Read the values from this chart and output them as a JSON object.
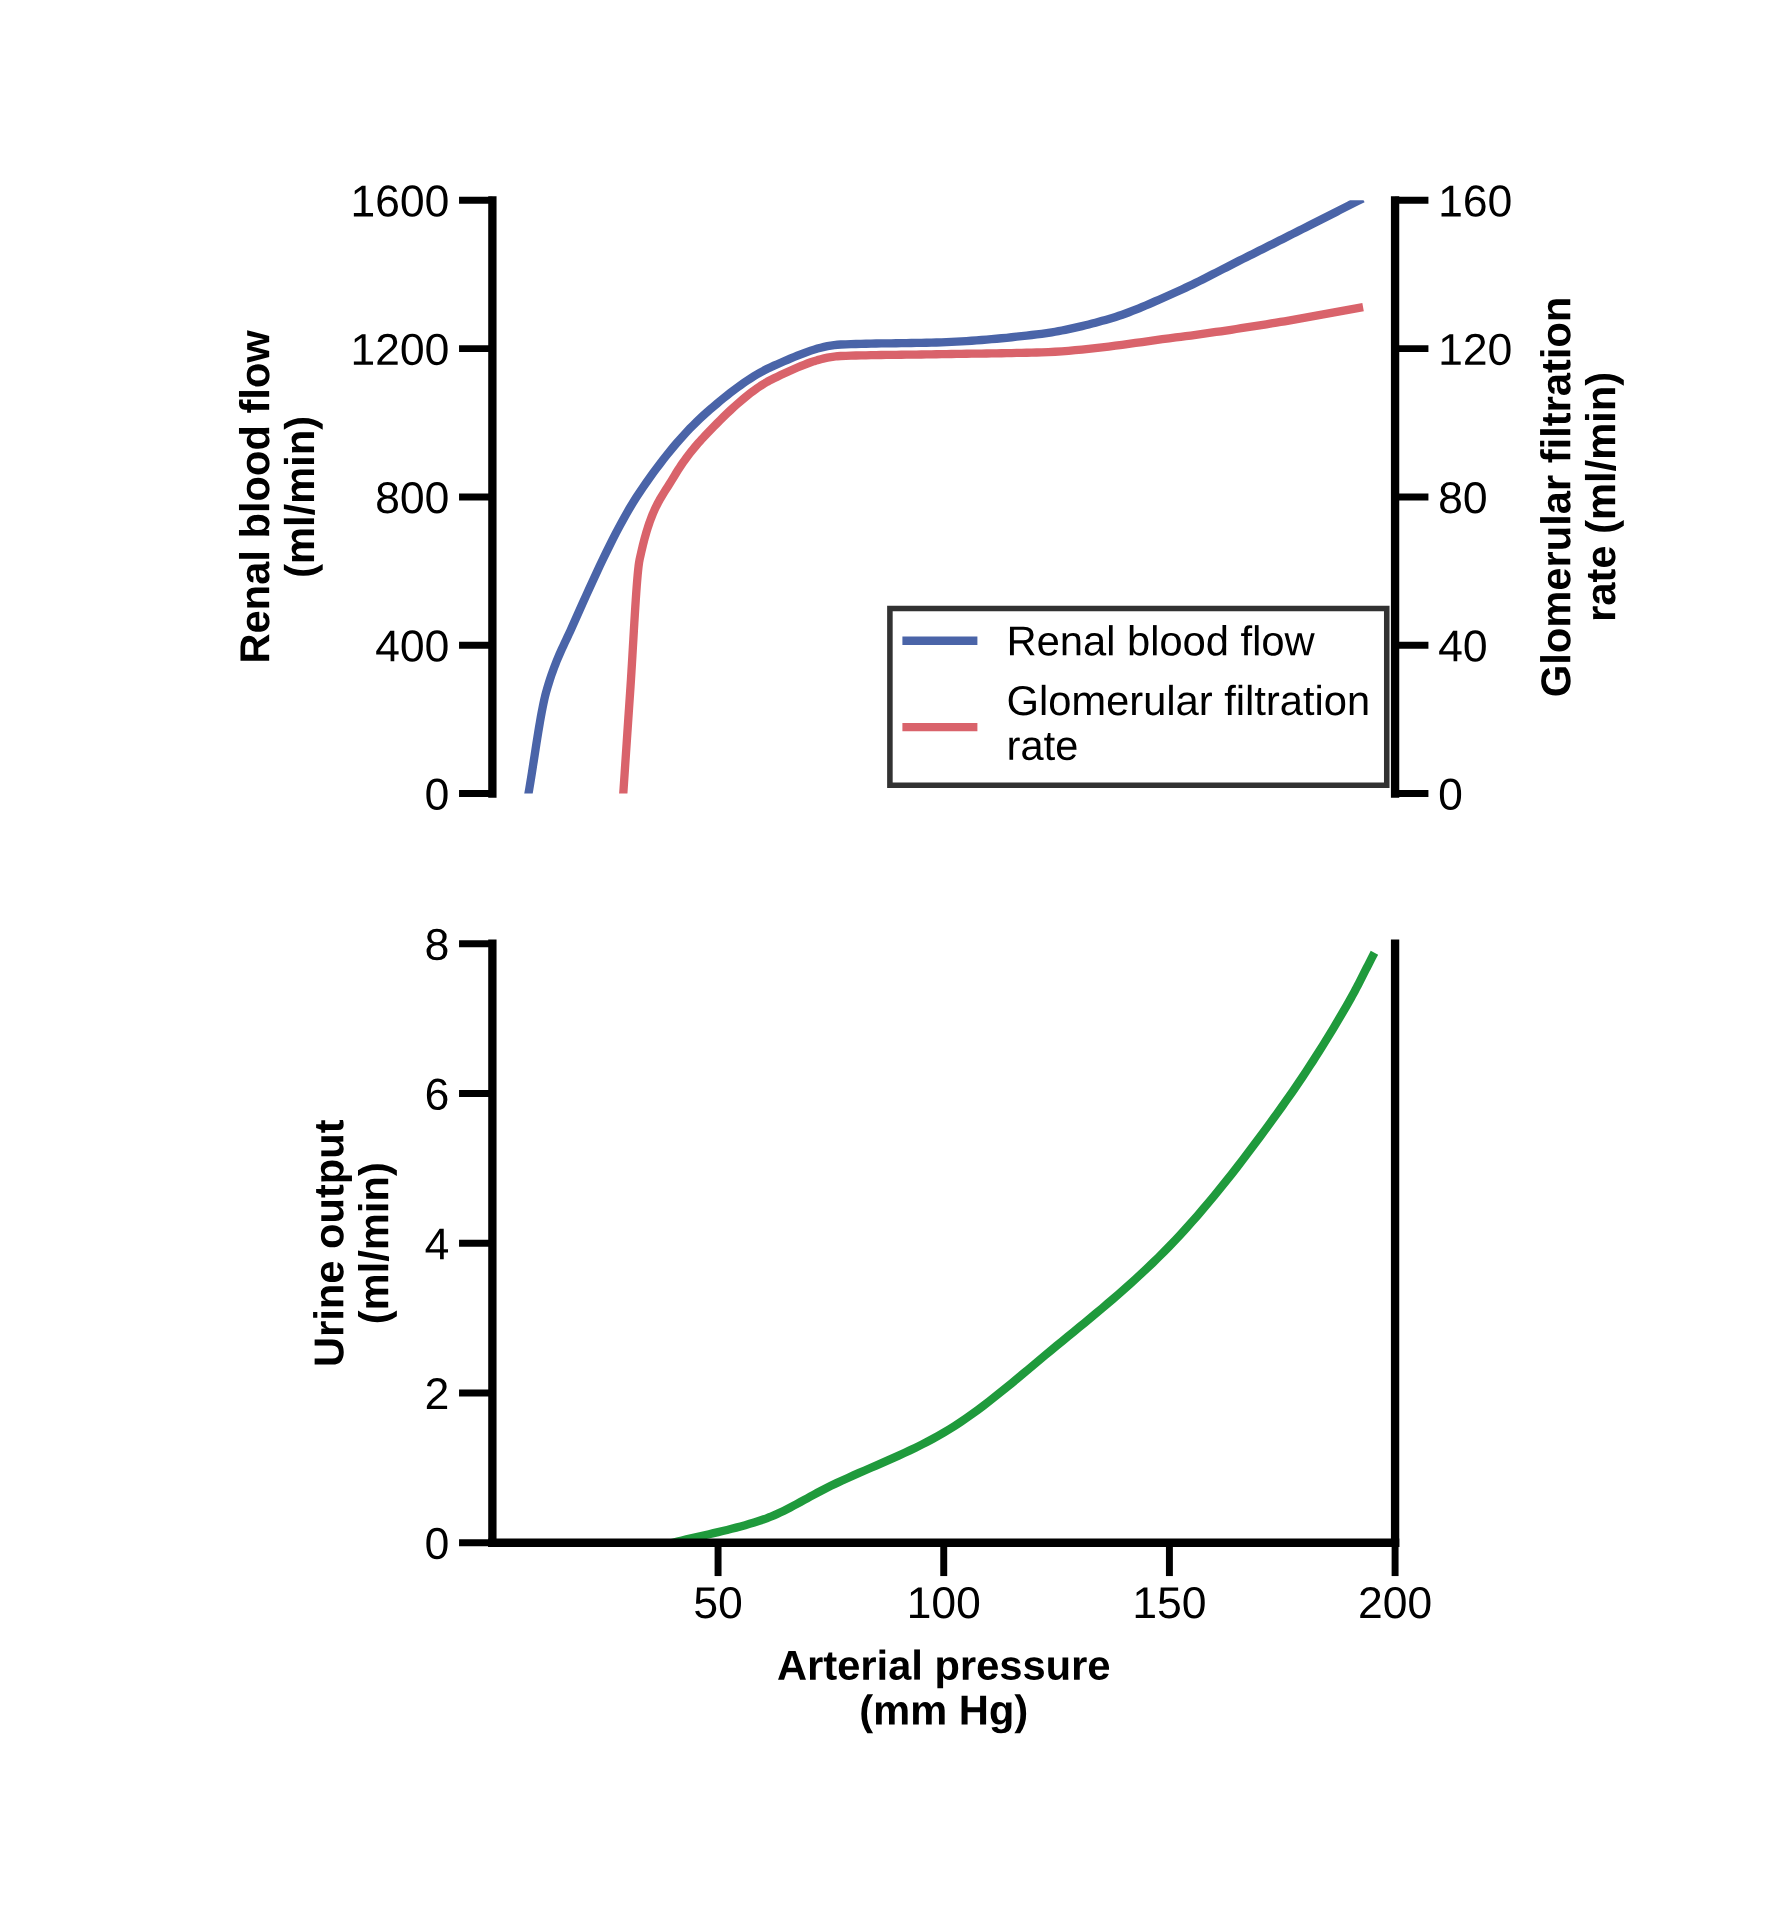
{
  "chart_data": [
    {
      "type": "line",
      "ylabel": "Renal blood flow\n(ml/min)",
      "y2label": "Glomerular filtration\nrate (ml/min)",
      "xlim": [
        0,
        200
      ],
      "ylim": [
        0,
        1600
      ],
      "yticks": [
        0,
        400,
        800,
        1200,
        1600
      ],
      "y2lim": [
        0,
        160
      ],
      "y2ticks": [
        0,
        40,
        80,
        120,
        160
      ],
      "tick_labels": "y",
      "legend": "bottom right",
      "grid": false,
      "series": [
        {
          "name": "Renal blood flow",
          "color": "#4a64a8",
          "x": [
            8,
            11.9,
            17.8,
            32.6,
            47.5,
            62.4,
            77.2,
            99.5,
            121.7,
            136.6,
            151.4,
            166.3,
            181,
            192
          ],
          "values": [
            0,
            273,
            453,
            812,
            1028,
            1154,
            1211,
            1217,
            1240,
            1280,
            1352,
            1442,
            1532,
            1600
          ]
        },
        {
          "name": "Glomerular filtration\nrate",
          "color": "#d9636b",
          "axis": "y2",
          "x": [
            29,
            30.5,
            32.6,
            40,
            47.5,
            62.4,
            77.2,
            99.5,
            121.7,
            151.4,
            173.7,
            192
          ],
          "values": [
            0,
            27,
            63,
            85,
            97,
            112,
            118,
            118.5,
            119,
            123,
            127,
            131
          ]
        }
      ]
    },
    {
      "type": "line",
      "ylabel": "Urine output\n(ml/min)",
      "xlabel": "Arterial pressure\n(mm Hg)",
      "xlim": [
        0,
        200
      ],
      "xticks": [
        50,
        100,
        150,
        200
      ],
      "ylim": [
        0,
        8
      ],
      "yticks": [
        0,
        2,
        4,
        6,
        8
      ],
      "grid": false,
      "series": [
        {
          "color": "#1f9a3c",
          "x": [
            40,
            60,
            75,
            100,
            125,
            150,
            175,
            190,
            195
          ],
          "values": [
            0,
            0.31,
            0.76,
            1.47,
            2.63,
            3.96,
            5.83,
            7.25,
            7.83
          ]
        }
      ]
    }
  ]
}
